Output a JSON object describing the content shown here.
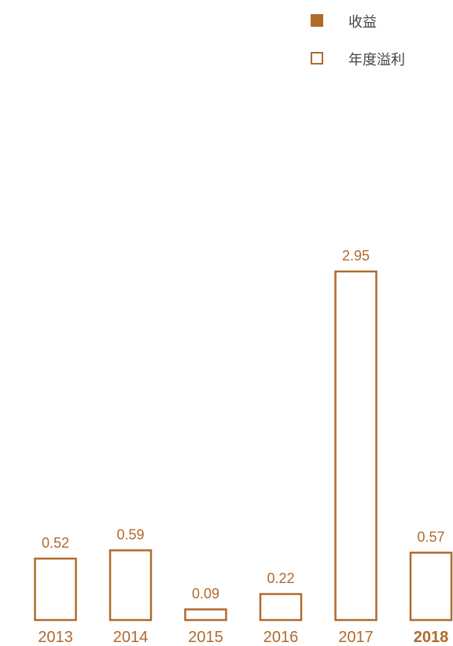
{
  "colors": {
    "accent": "#b06a2c",
    "legend_text": "#444444"
  },
  "legend": {
    "items": [
      {
        "label": "收益",
        "style": "filled"
      },
      {
        "label": "年度溢利",
        "style": "outline"
      }
    ]
  },
  "chart_data": {
    "type": "bar",
    "title": "",
    "xlabel": "",
    "ylabel": "",
    "categories": [
      "2013",
      "2014",
      "2015",
      "2016",
      "2017",
      "2018"
    ],
    "series": [
      {
        "name": "年度溢利",
        "values": [
          0.52,
          0.59,
          0.09,
          0.22,
          2.95,
          0.57
        ]
      }
    ],
    "data_labels": [
      "0.52",
      "0.59",
      "0.09",
      "0.22",
      "2.95",
      "0.57"
    ],
    "highlight_category": "2018",
    "grid": false,
    "legend_position": "top-right"
  }
}
